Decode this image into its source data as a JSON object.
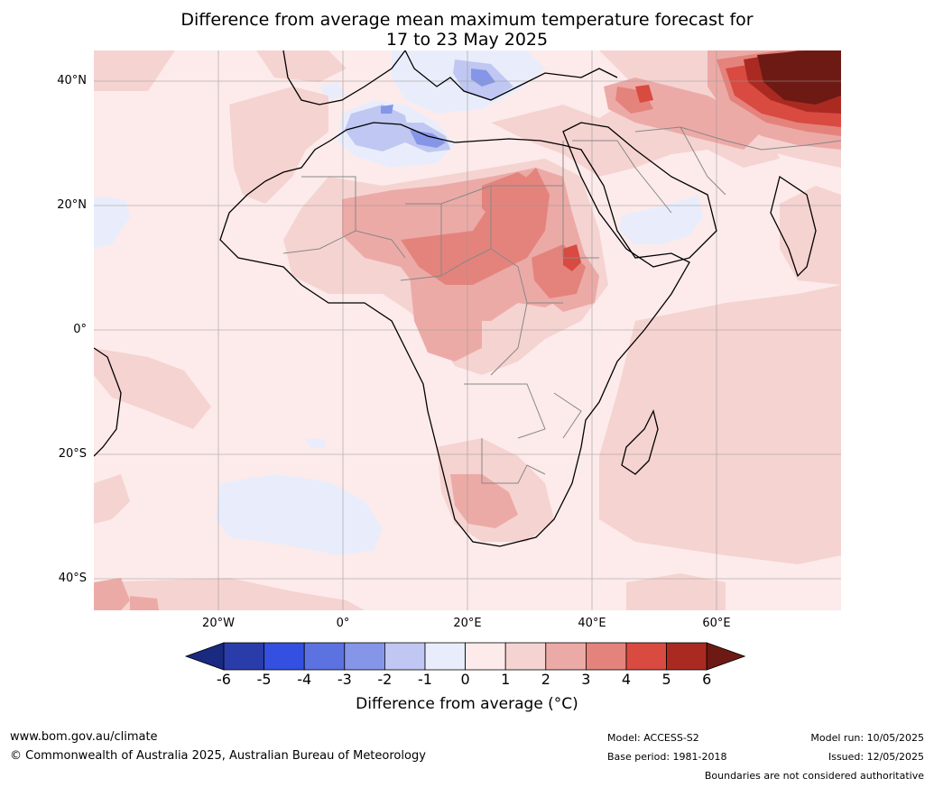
{
  "title": {
    "line1": "Difference from average mean maximum temperature forecast for",
    "line2": "17 to 23 May 2025"
  },
  "axes": {
    "lat_labels": [
      "40°N",
      "20°N",
      "0°",
      "20°S",
      "40°S"
    ],
    "lon_labels": [
      "20°W",
      "0°",
      "20°E",
      "40°E",
      "60°E"
    ]
  },
  "colorbar": {
    "ticks": [
      "-6",
      "-5",
      "-4",
      "-3",
      "-2",
      "-1",
      "0",
      "1",
      "2",
      "3",
      "4",
      "5",
      "6"
    ],
    "colors": [
      "#1a2a80",
      "#2a3caa",
      "#3350e0",
      "#5b72e0",
      "#8596e8",
      "#bfc7f2",
      "#e9edfb",
      "#fcebea",
      "#f5d3d1",
      "#ecaaa6",
      "#e4837c",
      "#d94a40",
      "#aa2a22",
      "#6e1a14"
    ],
    "label": "Difference from average (°C)",
    "range": [
      -6,
      6
    ]
  },
  "footer": {
    "website": "www.bom.gov.au/climate",
    "copyright": "© Commonwealth of Australia 2025, Australian Bureau of Meteorology",
    "model": "Model: ACCESS-S2",
    "base_period": "Base period: 1981-2018",
    "model_run": "Model run: 10/05/2025",
    "issued": "Issued: 12/05/2025",
    "disclaimer": "Boundaries are not considered authoritative"
  }
}
